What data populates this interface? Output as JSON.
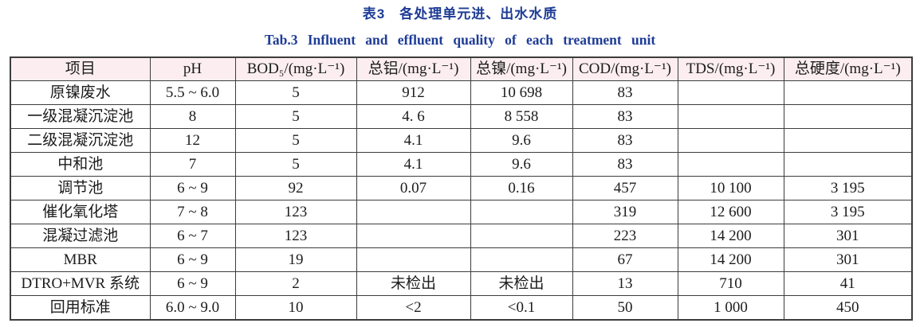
{
  "titles": {
    "chinese": "表3　各处理单元进、出水水质",
    "english": "Tab.3 Influent and effluent quality of each treatment unit"
  },
  "colors": {
    "title_blue": "#1e3c96",
    "header_pink": "#fceef0",
    "border": "#3c3c3c"
  },
  "table": {
    "headers": [
      "项目",
      "pH",
      "BOD₅/(mg·L⁻¹)",
      "总铝/(mg·L⁻¹)",
      "总镍/(mg·L⁻¹)",
      "COD/(mg·L⁻¹)",
      "TDS/(mg·L⁻¹)",
      "总硬度/(mg·L⁻¹)"
    ],
    "rows": [
      [
        "原镍废水",
        "5.5 ~ 6.0",
        "5",
        "912",
        "10 698",
        "83",
        "",
        ""
      ],
      [
        "一级混凝沉淀池",
        "8",
        "5",
        "4. 6",
        "8 558",
        "83",
        "",
        ""
      ],
      [
        "二级混凝沉淀池",
        "12",
        "5",
        "4.1",
        "9.6",
        "83",
        "",
        ""
      ],
      [
        "中和池",
        "7",
        "5",
        "4.1",
        "9.6",
        "83",
        "",
        ""
      ],
      [
        "调节池",
        "6 ~ 9",
        "92",
        "0.07",
        "0.16",
        "457",
        "10 100",
        "3 195"
      ],
      [
        "催化氧化塔",
        "7 ~ 8",
        "123",
        "",
        "",
        "319",
        "12 600",
        "3 195"
      ],
      [
        "混凝过滤池",
        "6 ~ 7",
        "123",
        "",
        "",
        "223",
        "14 200",
        "301"
      ],
      [
        "MBR",
        "6 ~ 9",
        "19",
        "",
        "",
        "67",
        "14 200",
        "301"
      ],
      [
        "DTRO+MVR 系统",
        "6 ~ 9",
        "2",
        "未检出",
        "未检出",
        "13",
        "710",
        "41"
      ],
      [
        "回用标准",
        "6.0 ~ 9.0",
        "10",
        "<2",
        "<0.1",
        "50",
        "1 000",
        "450"
      ]
    ]
  }
}
